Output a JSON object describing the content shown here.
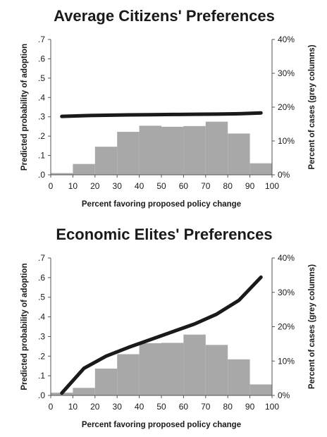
{
  "chart_data": [
    {
      "type": "bar+line",
      "title": "Average Citizens' Preferences",
      "xlabel": "Percent favoring proposed policy change",
      "ylabel_left": "Predicted probability of adoption",
      "ylabel_right": "Percent of cases (grey columns)",
      "xlim": [
        0,
        100
      ],
      "ylim_left": [
        0,
        0.7
      ],
      "ylim_right": [
        0,
        40
      ],
      "x_ticks": [
        "0",
        "10",
        "20",
        "30",
        "40",
        "50",
        "60",
        "70",
        "80",
        "90",
        "100"
      ],
      "y_left_ticks": [
        ".0",
        ".1",
        ".2",
        ".3",
        ".4",
        ".5",
        ".6",
        ".7"
      ],
      "y_right_ticks": [
        "0%",
        "10%",
        "20%",
        "30%",
        "40%"
      ],
      "bars": {
        "bin_edges": [
          0,
          10,
          20,
          30,
          40,
          50,
          60,
          70,
          80,
          90,
          100
        ],
        "values_percent": [
          0.5,
          3.2,
          8.3,
          12.7,
          14.5,
          14.2,
          14.4,
          15.7,
          12.2,
          3.4
        ],
        "color": "#a8a8a8"
      },
      "line": {
        "x": [
          5,
          15,
          25,
          35,
          45,
          55,
          65,
          75,
          85,
          95
        ],
        "y": [
          0.302,
          0.306,
          0.308,
          0.31,
          0.311,
          0.312,
          0.313,
          0.314,
          0.316,
          0.32
        ],
        "color": "#1a1a1a"
      },
      "grid": false
    },
    {
      "type": "bar+line",
      "title": "Economic Elites' Preferences",
      "xlabel": "Percent favoring proposed policy change",
      "ylabel_left": "Predicted probability of adoption",
      "ylabel_right": "Percent of cases (grey columns)",
      "xlim": [
        0,
        100
      ],
      "ylim_left": [
        0,
        0.7
      ],
      "ylim_right": [
        0,
        40
      ],
      "x_ticks": [
        "0",
        "10",
        "20",
        "30",
        "40",
        "50",
        "60",
        "70",
        "80",
        "90",
        "100"
      ],
      "y_left_ticks": [
        ".0",
        ".1",
        ".2",
        ".3",
        ".4",
        ".5",
        ".6",
        ".7"
      ],
      "y_right_ticks": [
        "0%",
        "10%",
        "20%",
        "30%",
        "40%"
      ],
      "bars": {
        "bin_edges": [
          0,
          10,
          20,
          30,
          40,
          50,
          60,
          70,
          80,
          90,
          100
        ],
        "values_percent": [
          0.8,
          2.2,
          7.8,
          12.0,
          15.2,
          15.3,
          17.7,
          14.7,
          10.5,
          3.2
        ],
        "color": "#a8a8a8"
      },
      "line": {
        "x": [
          5,
          15,
          25,
          35,
          45,
          55,
          65,
          75,
          85,
          95
        ],
        "y": [
          0.012,
          0.138,
          0.2,
          0.244,
          0.284,
          0.324,
          0.364,
          0.414,
          0.484,
          0.602
        ],
        "color": "#1a1a1a"
      },
      "grid": false
    }
  ]
}
